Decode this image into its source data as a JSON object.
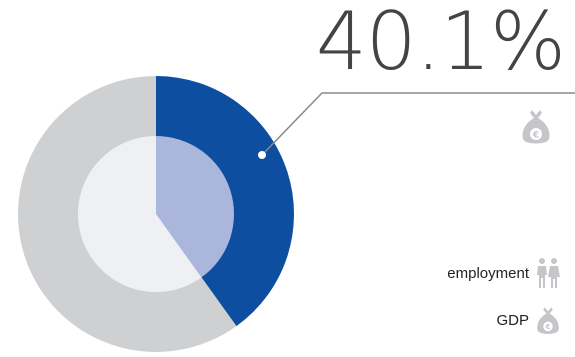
{
  "chart_data": {
    "type": "pie",
    "highlight_label": "40.1%",
    "series": [
      {
        "name": "employment",
        "values": [
          40.1,
          59.9
        ],
        "colors": [
          "#0d4ea0",
          "#cfd0d2"
        ]
      },
      {
        "name": "GDP",
        "values": [
          40.1,
          59.9
        ],
        "colors": [
          "#abb6dd",
          "#eef0f4"
        ]
      }
    ],
    "legend": [
      "employment",
      "GDP"
    ],
    "legend_placement": "bottom-right"
  },
  "icons": {
    "top": "money-bag-euro-icon",
    "employment": "people-icon",
    "gdp": "money-bag-euro-icon"
  }
}
